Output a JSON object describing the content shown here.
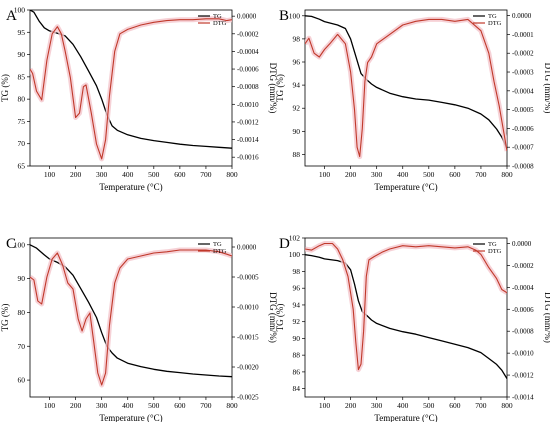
{
  "figure": {
    "panels": [
      "A",
      "B",
      "C",
      "D"
    ]
  },
  "chart_data": [
    {
      "panel": "A",
      "type": "line",
      "xlabel": "Temperature (°C)",
      "ylabel_left": "TG (%)",
      "ylabel_right": "DTG (mm/%)",
      "xlim": [
        25,
        800
      ],
      "xticks": [
        "100",
        "200",
        "300",
        "400",
        "500",
        "600",
        "700",
        "800"
      ],
      "y_left": {
        "lim": [
          65,
          100
        ],
        "ticks": [
          "65",
          "70",
          "75",
          "80",
          "85",
          "90",
          "95",
          "100"
        ]
      },
      "y_right": {
        "lim": [
          -0.0017,
          7e-05
        ],
        "ticks": [
          "-0.0016",
          "-0.0014",
          "-0.0012",
          "-0.0010",
          "-0.0008",
          "-0.0006",
          "-0.0004",
          "-0.0002",
          "0.0000"
        ]
      },
      "legend": {
        "position": "top-right",
        "entries": [
          "TG",
          "DTG"
        ]
      },
      "colors": {
        "TG": "#000000",
        "DTG": "#c0392b"
      },
      "series": [
        {
          "name": "TG",
          "axis": "left",
          "x": [
            25,
            40,
            60,
            80,
            100,
            130,
            160,
            190,
            220,
            250,
            280,
            300,
            320,
            340,
            360,
            400,
            450,
            500,
            550,
            600,
            650,
            700,
            750,
            800
          ],
          "y": [
            100,
            99.5,
            97.5,
            96,
            95.3,
            94.8,
            94.2,
            92.3,
            89.5,
            86.3,
            83,
            80,
            76.5,
            74,
            73,
            72,
            71.2,
            70.7,
            70.3,
            69.9,
            69.6,
            69.4,
            69.2,
            69
          ]
        },
        {
          "name": "DTG",
          "axis": "right",
          "x": [
            25,
            35,
            50,
            70,
            90,
            110,
            130,
            145,
            160,
            180,
            200,
            215,
            230,
            240,
            260,
            280,
            300,
            315,
            330,
            350,
            370,
            400,
            450,
            500,
            550,
            600,
            650,
            700,
            750,
            780,
            800
          ],
          "y": [
            -0.0006,
            -0.00065,
            -0.00085,
            -0.00095,
            -0.0005,
            -0.0002,
            -0.00012,
            -0.0002,
            -0.0004,
            -0.0007,
            -0.00115,
            -0.0011,
            -0.0008,
            -0.00078,
            -0.0011,
            -0.00145,
            -0.00162,
            -0.0014,
            -0.0009,
            -0.0004,
            -0.0002,
            -0.00015,
            -0.0001,
            -7e-05,
            -5e-05,
            -4e-05,
            -4e-05,
            -3e-05,
            -3e-05,
            -5e-05,
            -4e-05
          ]
        }
      ]
    },
    {
      "panel": "B",
      "type": "line",
      "xlabel": "Temperature (°C)",
      "ylabel_left": "TG (%)",
      "ylabel_right": "DTG (mm/%)",
      "xlim": [
        25,
        800
      ],
      "xticks": [
        "100",
        "200",
        "300",
        "400",
        "500",
        "600",
        "700",
        "800"
      ],
      "y_left": {
        "lim": [
          87,
          100.5
        ],
        "ticks": [
          "88",
          "90",
          "92",
          "94",
          "96",
          "98",
          "100"
        ]
      },
      "y_right": {
        "lim": [
          -0.0008,
          3e-05
        ],
        "ticks": [
          "-0.0008",
          "-0.0007",
          "-0.0006",
          "-0.0005",
          "-0.0004",
          "-0.0003",
          "-0.0002",
          "-0.0001",
          "0.0000"
        ]
      },
      "legend": {
        "position": "top-right",
        "entries": [
          "TG",
          "DTG"
        ]
      },
      "colors": {
        "TG": "#000000",
        "DTG": "#c0392b"
      },
      "series": [
        {
          "name": "TG",
          "axis": "left",
          "x": [
            25,
            50,
            80,
            100,
            150,
            180,
            200,
            220,
            240,
            260,
            280,
            300,
            350,
            400,
            450,
            500,
            550,
            600,
            650,
            700,
            730,
            760,
            780,
            800
          ],
          "y": [
            100,
            99.95,
            99.7,
            99.5,
            99.2,
            98.9,
            98,
            96.5,
            95,
            94.5,
            94.1,
            93.8,
            93.3,
            93,
            92.8,
            92.7,
            92.5,
            92.3,
            92,
            91.5,
            91,
            90.2,
            89.5,
            88.5
          ]
        },
        {
          "name": "DTG",
          "axis": "right",
          "x": [
            25,
            40,
            60,
            80,
            100,
            120,
            150,
            180,
            200,
            215,
            225,
            235,
            245,
            255,
            265,
            280,
            300,
            350,
            400,
            450,
            500,
            550,
            600,
            650,
            700,
            730,
            750,
            770,
            785,
            800
          ],
          "y": [
            -0.00015,
            -0.00012,
            -0.0002,
            -0.00022,
            -0.00018,
            -0.00015,
            -0.0001,
            -0.00015,
            -0.0003,
            -0.0005,
            -0.0007,
            -0.00075,
            -0.0006,
            -0.00035,
            -0.00025,
            -0.00022,
            -0.00015,
            -0.0001,
            -5e-05,
            -3e-05,
            -2e-05,
            -2e-05,
            -3e-05,
            -2e-05,
            -8e-05,
            -0.0002,
            -0.00035,
            -0.00048,
            -0.0006,
            -0.00072
          ]
        }
      ]
    },
    {
      "panel": "C",
      "type": "line",
      "xlabel": "Temperature (°C)",
      "ylabel_left": "TG (%)",
      "ylabel_right": "DTG (mm/%)",
      "xlim": [
        25,
        800
      ],
      "xticks": [
        "100",
        "200",
        "300",
        "400",
        "500",
        "600",
        "700",
        "800"
      ],
      "y_left": {
        "lim": [
          55,
          102
        ],
        "ticks": [
          "60",
          "70",
          "80",
          "90",
          "100"
        ]
      },
      "y_right": {
        "lim": [
          -0.0025,
          0.00015
        ],
        "ticks": [
          "-0.0025",
          "-0.0020",
          "-0.0015",
          "-0.0010",
          "-0.0005",
          "0.0000"
        ]
      },
      "legend": {
        "position": "top-right",
        "entries": [
          "TG",
          "DTG"
        ]
      },
      "colors": {
        "TG": "#000000",
        "DTG": "#c0392b"
      },
      "series": [
        {
          "name": "TG",
          "axis": "left",
          "x": [
            25,
            50,
            80,
            100,
            130,
            160,
            190,
            220,
            250,
            280,
            300,
            320,
            340,
            360,
            400,
            450,
            500,
            550,
            600,
            650,
            700,
            750,
            800
          ],
          "y": [
            100,
            99,
            97,
            95.8,
            94.8,
            93.5,
            91,
            87,
            83,
            78.5,
            74,
            70,
            68,
            66.5,
            65,
            64,
            63.2,
            62.6,
            62.2,
            61.8,
            61.5,
            61.2,
            61
          ]
        },
        {
          "name": "DTG",
          "axis": "right",
          "x": [
            25,
            40,
            55,
            70,
            90,
            110,
            130,
            150,
            170,
            190,
            210,
            225,
            240,
            255,
            270,
            285,
            300,
            315,
            330,
            350,
            370,
            400,
            450,
            500,
            550,
            600,
            650,
            700,
            750,
            780,
            800
          ],
          "y": [
            -0.0005,
            -0.00055,
            -0.0009,
            -0.00095,
            -0.0005,
            -0.0002,
            -0.0001,
            -0.0003,
            -0.0006,
            -0.0007,
            -0.0012,
            -0.0014,
            -0.0012,
            -0.0011,
            -0.0016,
            -0.0021,
            -0.0023,
            -0.0021,
            -0.0013,
            -0.0006,
            -0.00035,
            -0.0002,
            -0.00015,
            -0.0001,
            -8e-05,
            -5e-05,
            -5e-05,
            -5e-05,
            -8e-05,
            -0.00012,
            -0.00015
          ]
        }
      ]
    },
    {
      "panel": "D",
      "type": "line",
      "xlabel": "Temperature (°C)",
      "ylabel_left": "TG (%)",
      "ylabel_right": "DTG (mm/%)",
      "xlim": [
        25,
        800
      ],
      "xticks": [
        "100",
        "200",
        "300",
        "400",
        "500",
        "600",
        "700",
        "800"
      ],
      "y_left": {
        "lim": [
          83,
          102
        ],
        "ticks": [
          "84",
          "86",
          "88",
          "90",
          "92",
          "94",
          "96",
          "98",
          "100",
          "102"
        ]
      },
      "y_right": {
        "lim": [
          -0.0014,
          5e-05
        ],
        "ticks": [
          "-0.0014",
          "-0.0012",
          "-0.0010",
          "-0.0008",
          "-0.0006",
          "-0.0004",
          "-0.0002",
          "0.0000"
        ]
      },
      "legend": {
        "position": "top-right",
        "entries": [
          "TG",
          "DTG"
        ]
      },
      "colors": {
        "TG": "#000000",
        "DTG": "#c0392b"
      },
      "series": [
        {
          "name": "TG",
          "axis": "left",
          "x": [
            25,
            50,
            80,
            100,
            150,
            180,
            200,
            215,
            230,
            245,
            260,
            280,
            300,
            350,
            400,
            450,
            500,
            550,
            600,
            650,
            700,
            730,
            760,
            780,
            800
          ],
          "y": [
            100,
            99.9,
            99.7,
            99.5,
            99.3,
            99,
            98.2,
            96.5,
            94.5,
            93.2,
            92.8,
            92.2,
            91.8,
            91.2,
            90.8,
            90.5,
            90.1,
            89.7,
            89.3,
            88.9,
            88.3,
            87.6,
            86.9,
            86.2,
            85.2
          ]
        },
        {
          "name": "DTG",
          "axis": "right",
          "x": [
            25,
            50,
            80,
            100,
            130,
            150,
            170,
            190,
            210,
            220,
            230,
            240,
            250,
            260,
            270,
            290,
            320,
            350,
            400,
            450,
            500,
            550,
            600,
            650,
            680,
            700,
            730,
            760,
            780,
            800
          ],
          "y": [
            -5e-05,
            -6e-05,
            -2e-05,
            0.0,
            0.0,
            -5e-05,
            -0.00015,
            -0.0003,
            -0.0006,
            -0.0009,
            -0.00115,
            -0.0011,
            -0.0008,
            -0.0003,
            -0.00015,
            -0.00012,
            -8e-05,
            -5e-05,
            -2e-05,
            -3e-05,
            -2e-05,
            -3e-05,
            -4e-05,
            -3e-05,
            -6e-05,
            -0.0001,
            -0.00022,
            -0.00032,
            -0.00042,
            -0.00045
          ]
        }
      ]
    }
  ]
}
